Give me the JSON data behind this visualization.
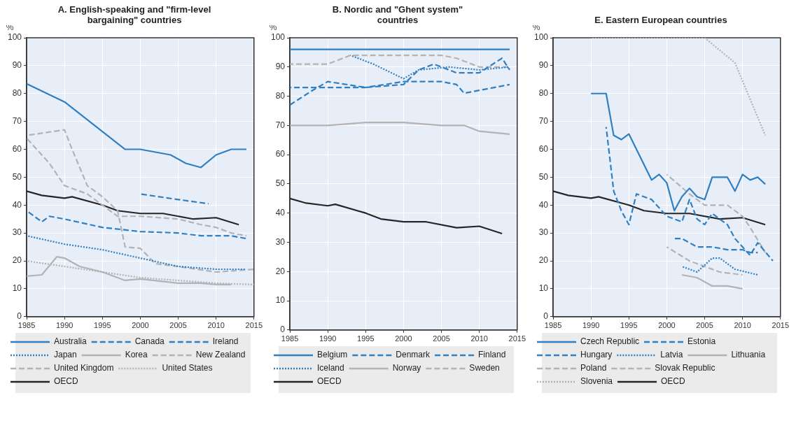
{
  "chart_data": [
    {
      "type": "line",
      "title": "A. English-speaking and \"firm-level bargaining\" countries",
      "ylabel": "%",
      "xlim": [
        1985,
        2015
      ],
      "xticks": [
        1985,
        1990,
        1995,
        2000,
        2005,
        2010,
        2015
      ],
      "ylim": [
        0,
        100
      ],
      "yticks": [
        0,
        10,
        20,
        30,
        40,
        50,
        60,
        70,
        80,
        90,
        100
      ],
      "grid": true,
      "legend": "bottom",
      "marker": "none",
      "series": [
        {
          "name": "Australia",
          "color": "#2f7fc1",
          "line_style": "solid",
          "x": [
            1985,
            1990,
            1998,
            2000,
            2004,
            2006,
            2008,
            2010,
            2012,
            2014
          ],
          "values": [
            83.5,
            77,
            60,
            60,
            58,
            55,
            53.5,
            58,
            60,
            60
          ]
        },
        {
          "name": "Canada",
          "color": "#2f7fc1",
          "line_style": "dashed",
          "x": [
            1985,
            1987,
            1988,
            1990,
            1995,
            2000,
            2005,
            2008,
            2012,
            2014
          ],
          "values": [
            38,
            34,
            36,
            35,
            32,
            30.5,
            30,
            29,
            29,
            28
          ]
        },
        {
          "name": "Ireland",
          "color": "#2f7fc1",
          "line_style": "dashed",
          "x": [
            2000,
            2005,
            2009
          ],
          "values": [
            44,
            42,
            40.5
          ]
        },
        {
          "name": "Japan",
          "color": "#2f7fc1",
          "line_style": "dotted",
          "x": [
            1985,
            1990,
            1995,
            2000,
            2005,
            2010,
            2014
          ],
          "values": [
            29,
            26,
            24,
            21,
            18,
            17,
            17
          ]
        },
        {
          "name": "Korea",
          "color": "#b3b3b3",
          "line_style": "solid",
          "x": [
            1985,
            1987,
            1989,
            1990,
            1992,
            1995,
            1998,
            2000,
            2005,
            2008,
            2010,
            2012
          ],
          "values": [
            14.5,
            15,
            21.5,
            21,
            18,
            16,
            13,
            13.5,
            12,
            12,
            11.5,
            11.5
          ]
        },
        {
          "name": "New Zealand",
          "color": "#b3b3b3",
          "line_style": "dashed",
          "x": [
            1985,
            1990,
            1991,
            1993,
            1995,
            1997,
            1998,
            2000,
            2002,
            2005,
            2010,
            2015
          ],
          "values": [
            65,
            67,
            60,
            47,
            43,
            38,
            25,
            24.5,
            19,
            18,
            16,
            17
          ]
        },
        {
          "name": "United Kingdom",
          "color": "#b3b3b3",
          "line_style": "dashed",
          "x": [
            1985,
            1988,
            1990,
            1993,
            1995,
            1997,
            2000,
            2005,
            2008,
            2010,
            2012,
            2014
          ],
          "values": [
            64,
            55,
            47,
            44,
            40,
            36,
            36,
            35,
            33,
            32,
            30,
            29
          ]
        },
        {
          "name": "United States",
          "color": "#b3b3b3",
          "line_style": "dotted",
          "x": [
            1985,
            1990,
            1995,
            2000,
            2005,
            2010,
            2015
          ],
          "values": [
            20,
            18,
            16,
            14,
            13,
            12,
            11.5
          ]
        },
        {
          "name": "OECD",
          "color": "#262626",
          "line_style": "solid",
          "x": [
            1985,
            1987,
            1990,
            1991,
            1995,
            1997,
            2000,
            2003,
            2007,
            2010,
            2013
          ],
          "values": [
            45,
            43.5,
            42.5,
            43,
            40,
            38,
            37,
            37,
            35,
            35.5,
            33
          ]
        }
      ]
    },
    {
      "type": "line",
      "title": "B. Nordic and \"Ghent system\" countries",
      "ylabel": "%",
      "xlim": [
        1985,
        2015
      ],
      "xticks": [
        1985,
        1990,
        1995,
        2000,
        2005,
        2010,
        2015
      ],
      "ylim": [
        0,
        100
      ],
      "yticks": [
        0,
        10,
        20,
        30,
        40,
        50,
        60,
        70,
        80,
        90,
        100
      ],
      "grid": true,
      "legend": "bottom",
      "marker": "none",
      "series": [
        {
          "name": "Belgium",
          "color": "#2f7fc1",
          "line_style": "solid",
          "x": [
            1985,
            2014
          ],
          "values": [
            96,
            96
          ]
        },
        {
          "name": "Denmark",
          "color": "#2f7fc1",
          "line_style": "dashed",
          "x": [
            1985,
            1990,
            1995,
            2000,
            2005,
            2007,
            2008,
            2010,
            2014
          ],
          "values": [
            83,
            83,
            83,
            85,
            85,
            84,
            81,
            82,
            84
          ]
        },
        {
          "name": "Finland",
          "color": "#2f7fc1",
          "line_style": "dashed",
          "x": [
            1985,
            1988,
            1990,
            1995,
            2000,
            2002,
            2004,
            2007,
            2010,
            2013,
            2014
          ],
          "values": [
            77,
            82,
            85,
            83,
            84,
            89,
            91,
            88,
            88,
            93,
            89
          ]
        },
        {
          "name": "Iceland",
          "color": "#2f7fc1",
          "line_style": "dotted",
          "x": [
            1993,
            1996,
            2000,
            2002,
            2006,
            2010,
            2014
          ],
          "values": [
            94,
            91,
            86,
            89,
            90,
            89,
            90
          ]
        },
        {
          "name": "Norway",
          "color": "#b3b3b3",
          "line_style": "solid",
          "x": [
            1985,
            1990,
            1995,
            2000,
            2005,
            2008,
            2010,
            2014
          ],
          "values": [
            70,
            70,
            71,
            71,
            70,
            70,
            68,
            67
          ]
        },
        {
          "name": "Sweden",
          "color": "#b3b3b3",
          "line_style": "dashed",
          "x": [
            1985,
            1990,
            1993,
            1995,
            2000,
            2005,
            2007,
            2010,
            2014
          ],
          "values": [
            91,
            91,
            94,
            94,
            94,
            94,
            93,
            90,
            90
          ]
        },
        {
          "name": "OECD",
          "color": "#262626",
          "line_style": "solid",
          "x": [
            1985,
            1987,
            1990,
            1991,
            1995,
            1997,
            2000,
            2003,
            2007,
            2010,
            2013
          ],
          "values": [
            45,
            43.5,
            42.5,
            43,
            40,
            38,
            37,
            37,
            35,
            35.5,
            33
          ]
        }
      ]
    },
    {
      "type": "line",
      "title": "E. Eastern European countries",
      "ylabel": "%",
      "xlim": [
        1985,
        2015
      ],
      "xticks": [
        1985,
        1990,
        1995,
        2000,
        2005,
        2010,
        2015
      ],
      "ylim": [
        0,
        100
      ],
      "yticks": [
        0,
        10,
        20,
        30,
        40,
        50,
        60,
        70,
        80,
        90,
        100
      ],
      "grid": true,
      "legend": "bottom",
      "marker": "none",
      "series": [
        {
          "name": "Czech Republic",
          "color": "#2f7fc1",
          "line_style": "solid",
          "x": [
            1990,
            1992,
            1993,
            1994,
            1995,
            1998,
            1999,
            2000,
            2001,
            2002,
            2003,
            2004,
            2005,
            2006,
            2008,
            2009,
            2010,
            2011,
            2012,
            2013
          ],
          "values": [
            80,
            80,
            65,
            63.5,
            65.5,
            49,
            51,
            48,
            38,
            43,
            46,
            43,
            42,
            50,
            50,
            45,
            51,
            49,
            50,
            47.5
          ]
        },
        {
          "name": "Estonia",
          "color": "#2f7fc1",
          "line_style": "dashed",
          "x": [
            2001,
            2002,
            2004,
            2006,
            2008,
            2010,
            2011,
            2012
          ],
          "values": [
            28,
            28,
            25,
            25,
            24,
            24,
            23,
            23
          ]
        },
        {
          "name": "Hungary",
          "color": "#2f7fc1",
          "line_style": "dashed",
          "x": [
            1992,
            1993,
            1994,
            1995,
            1996,
            1998,
            2000,
            2002,
            2003,
            2004,
            2005,
            2006,
            2008,
            2009,
            2010,
            2011,
            2012,
            2014
          ],
          "values": [
            68,
            45,
            38,
            33,
            44,
            42,
            36,
            34,
            42,
            35,
            33,
            37,
            33,
            28,
            25,
            22,
            26.5,
            20
          ]
        },
        {
          "name": "Latvia",
          "color": "#2f7fc1",
          "line_style": "dotted",
          "x": [
            2002,
            2004,
            2006,
            2007,
            2009,
            2012
          ],
          "values": [
            18,
            16,
            21,
            21,
            17,
            15
          ]
        },
        {
          "name": "Lithuania",
          "color": "#b3b3b3",
          "line_style": "solid",
          "x": [
            2002,
            2004,
            2006,
            2008,
            2010
          ],
          "values": [
            15,
            14,
            11,
            11,
            10
          ]
        },
        {
          "name": "Poland",
          "color": "#b3b3b3",
          "line_style": "dashed",
          "x": [
            2000,
            2003,
            2005,
            2007,
            2010
          ],
          "values": [
            25,
            20,
            18,
            16,
            15
          ]
        },
        {
          "name": "Slovak Republic",
          "color": "#b3b3b3",
          "line_style": "dashed",
          "x": [
            2000,
            2003,
            2005,
            2008,
            2010,
            2011,
            2013
          ],
          "values": [
            51,
            44,
            40,
            40,
            36,
            32,
            23
          ]
        },
        {
          "name": "Slovenia",
          "color": "#b3b3b3",
          "line_style": "dotted",
          "x": [
            1990,
            2005,
            2009,
            2013
          ],
          "values": [
            100,
            100,
            91,
            65
          ]
        },
        {
          "name": "OECD",
          "color": "#262626",
          "line_style": "solid",
          "x": [
            1985,
            1987,
            1990,
            1991,
            1995,
            1997,
            2000,
            2003,
            2007,
            2010,
            2013
          ],
          "values": [
            45,
            43.5,
            42.5,
            43,
            40,
            38,
            37,
            37,
            35,
            35.5,
            33
          ]
        }
      ]
    }
  ]
}
